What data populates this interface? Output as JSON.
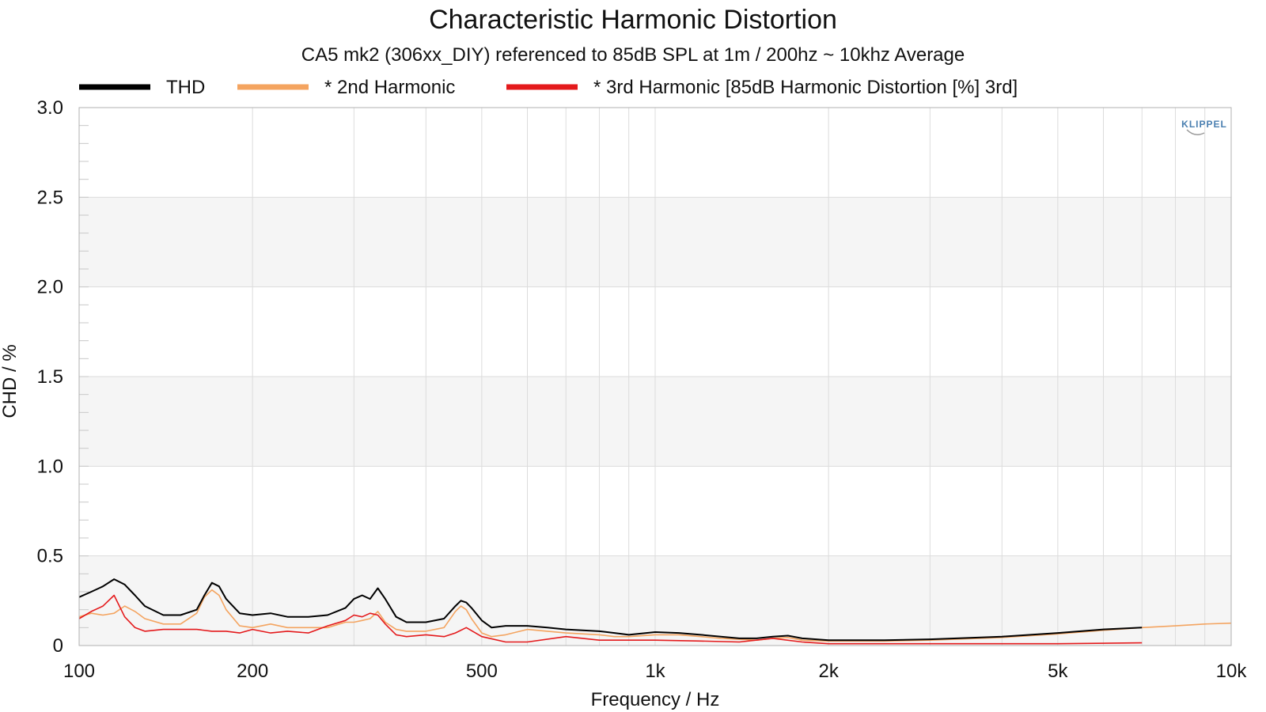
{
  "chart_data": {
    "type": "line",
    "title": "Characteristic Harmonic Distortion",
    "subtitle": "CA5 mk2 (306xx_DIY) referenced to 85dB SPL at 1m / 200hz ~ 10khz Average",
    "xlabel": "Frequency / Hz",
    "ylabel": "CHD / %",
    "x_scale": "log",
    "xlim": [
      100,
      10000
    ],
    "ylim": [
      0,
      3.0
    ],
    "x_ticks": [
      {
        "value": 100,
        "label": "100"
      },
      {
        "value": 200,
        "label": "200"
      },
      {
        "value": 500,
        "label": "500"
      },
      {
        "value": 1000,
        "label": "1k"
      },
      {
        "value": 2000,
        "label": "2k"
      },
      {
        "value": 5000,
        "label": "5k"
      },
      {
        "value": 10000,
        "label": "10k"
      }
    ],
    "y_ticks": [
      {
        "value": 0,
        "label": "0"
      },
      {
        "value": 0.5,
        "label": "0.5"
      },
      {
        "value": 1.0,
        "label": "1.0"
      },
      {
        "value": 1.5,
        "label": "1.5"
      },
      {
        "value": 2.0,
        "label": "2.0"
      },
      {
        "value": 2.5,
        "label": "2.5"
      },
      {
        "value": 3.0,
        "label": "3.0"
      }
    ],
    "grid": true,
    "banded_background": true,
    "legend_position": "top",
    "series": [
      {
        "name": "THD",
        "color": "#000000",
        "x": [
          100,
          105,
          110,
          115,
          120,
          125,
          130,
          140,
          150,
          160,
          165,
          170,
          175,
          180,
          190,
          200,
          215,
          230,
          250,
          270,
          290,
          300,
          310,
          320,
          330,
          340,
          355,
          370,
          400,
          430,
          450,
          460,
          470,
          480,
          500,
          520,
          550,
          600,
          650,
          700,
          800,
          850,
          900,
          1000,
          1100,
          1200,
          1300,
          1400,
          1500,
          1600,
          1700,
          1800,
          2000,
          2500,
          3000,
          4000,
          5000,
          6000,
          7000
        ],
        "y": [
          0.27,
          0.3,
          0.33,
          0.37,
          0.34,
          0.28,
          0.22,
          0.17,
          0.17,
          0.2,
          0.28,
          0.35,
          0.33,
          0.26,
          0.18,
          0.17,
          0.18,
          0.16,
          0.16,
          0.17,
          0.21,
          0.26,
          0.28,
          0.26,
          0.32,
          0.26,
          0.16,
          0.13,
          0.13,
          0.15,
          0.22,
          0.25,
          0.24,
          0.21,
          0.14,
          0.1,
          0.11,
          0.11,
          0.1,
          0.09,
          0.08,
          0.07,
          0.06,
          0.075,
          0.07,
          0.06,
          0.05,
          0.04,
          0.04,
          0.05,
          0.055,
          0.04,
          0.03,
          0.03,
          0.035,
          0.05,
          0.07,
          0.09,
          0.1
        ]
      },
      {
        "name": "* 2nd Harmonic",
        "color": "#f4a460",
        "x": [
          100,
          105,
          110,
          115,
          120,
          125,
          130,
          140,
          150,
          160,
          165,
          170,
          175,
          180,
          190,
          200,
          215,
          230,
          250,
          270,
          290,
          300,
          310,
          320,
          330,
          340,
          355,
          370,
          400,
          430,
          450,
          460,
          470,
          480,
          500,
          520,
          550,
          600,
          650,
          700,
          800,
          850,
          900,
          1000,
          1100,
          1200,
          1300,
          1400,
          1500,
          1600,
          1700,
          1800,
          2000,
          2500,
          3000,
          4000,
          5000,
          6000,
          7000,
          8000,
          9000,
          10000
        ],
        "y": [
          0.16,
          0.18,
          0.17,
          0.18,
          0.22,
          0.19,
          0.15,
          0.12,
          0.12,
          0.18,
          0.27,
          0.31,
          0.28,
          0.2,
          0.11,
          0.1,
          0.12,
          0.1,
          0.1,
          0.1,
          0.13,
          0.13,
          0.14,
          0.15,
          0.19,
          0.13,
          0.09,
          0.08,
          0.08,
          0.1,
          0.19,
          0.22,
          0.2,
          0.15,
          0.07,
          0.05,
          0.06,
          0.09,
          0.08,
          0.07,
          0.06,
          0.05,
          0.05,
          0.06,
          0.06,
          0.05,
          0.04,
          0.035,
          0.03,
          0.04,
          0.045,
          0.03,
          0.025,
          0.025,
          0.03,
          0.045,
          0.065,
          0.085,
          0.1,
          0.11,
          0.12,
          0.125
        ]
      },
      {
        "name": "* 3rd Harmonic [85dB Harmonic Distortion [%] 3rd]",
        "color": "#e41a1c",
        "x": [
          100,
          105,
          110,
          115,
          120,
          125,
          130,
          140,
          150,
          160,
          170,
          180,
          190,
          200,
          215,
          230,
          250,
          270,
          290,
          300,
          310,
          320,
          330,
          340,
          355,
          370,
          400,
          430,
          450,
          470,
          500,
          550,
          600,
          700,
          800,
          1000,
          1200,
          1400,
          1600,
          1800,
          2000,
          3000,
          5000,
          7000
        ],
        "y": [
          0.15,
          0.19,
          0.22,
          0.28,
          0.16,
          0.1,
          0.08,
          0.09,
          0.09,
          0.09,
          0.08,
          0.08,
          0.07,
          0.09,
          0.07,
          0.08,
          0.07,
          0.11,
          0.14,
          0.17,
          0.16,
          0.18,
          0.17,
          0.12,
          0.06,
          0.05,
          0.06,
          0.05,
          0.07,
          0.1,
          0.05,
          0.02,
          0.02,
          0.05,
          0.03,
          0.03,
          0.025,
          0.02,
          0.04,
          0.02,
          0.01,
          0.01,
          0.01,
          0.015
        ]
      }
    ]
  },
  "logo": {
    "text": "KLIPPEL"
  }
}
